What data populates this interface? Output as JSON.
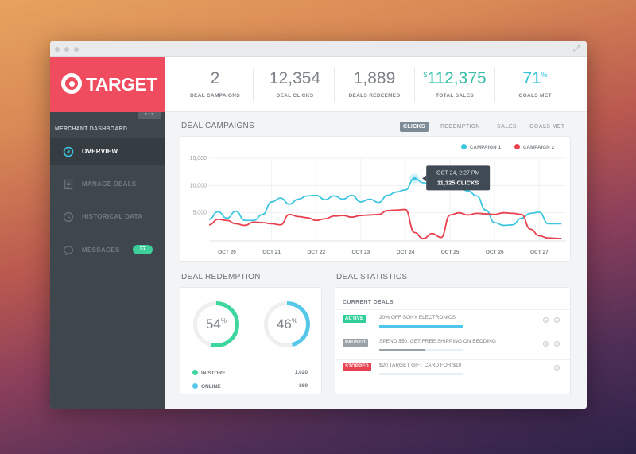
{
  "brand": {
    "name": "TARGET",
    "logo_icon": "target-bullseye-icon",
    "color": "#ef4d5f"
  },
  "sidebar": {
    "heading": "MERCHANT DASHBOARD",
    "more_icon": "more-dots-icon",
    "more_label": "•••",
    "items": [
      {
        "label": "OVERVIEW",
        "icon": "overview-icon",
        "active": true
      },
      {
        "label": "MANAGE DEALS",
        "icon": "document-icon",
        "active": false
      },
      {
        "label": "HISTORICAL DATA",
        "icon": "clock-icon",
        "active": false
      },
      {
        "label": "MESSAGES",
        "icon": "chat-bubble-icon",
        "active": false,
        "badge": "37"
      }
    ]
  },
  "stats": [
    {
      "value": "2",
      "label": "DEAL CAMPAIGNS"
    },
    {
      "value": "12,354",
      "label": "DEAL CLICKS"
    },
    {
      "value": "1,889",
      "label": "DEALS REDEEMED"
    },
    {
      "prefix": "$",
      "value": "112,375",
      "label": "TOTAL SALES"
    },
    {
      "value": "71",
      "suffix": "%",
      "label": "GOALS MET"
    }
  ],
  "campaigns": {
    "title": "DEAL CAMPAIGNS",
    "tabs": [
      "CLICKS",
      "REDEMPTION",
      "SALES",
      "GOALS MET"
    ],
    "active_tab": "CLICKS",
    "tooltip": {
      "date": "OCT 24, 2:27 PM",
      "value": "11,325 CLICKS"
    }
  },
  "chart_data": {
    "type": "line",
    "title": "",
    "xlabel": "",
    "ylabel": "",
    "ylim": [
      0,
      15000
    ],
    "yticks": [
      "15,000",
      "10,000",
      "5,000"
    ],
    "ytick_values": [
      15000,
      10000,
      5000
    ],
    "x_ticks": [
      "OCT 20",
      "OCT 21",
      "OCT 22",
      "OCT 23",
      "OCT 24",
      "OCT 25",
      "OCT 26",
      "OCT 27"
    ],
    "x": [
      19.6,
      19.8,
      20.0,
      20.2,
      20.4,
      20.6,
      20.8,
      21.0,
      21.2,
      21.4,
      21.6,
      21.8,
      22.0,
      22.2,
      22.4,
      22.6,
      22.8,
      23.0,
      23.2,
      23.4,
      23.6,
      23.8,
      24.0,
      24.2,
      24.4,
      24.6,
      24.8,
      25.0,
      25.2,
      25.4,
      25.6,
      25.8,
      26.0,
      26.2,
      26.4,
      26.6,
      26.8,
      27.0,
      27.2,
      27.5
    ],
    "series": [
      {
        "name": "CAMPAIGN 1",
        "color": "#3ec6e0",
        "values": [
          3800,
          5200,
          4000,
          5300,
          3600,
          3600,
          4700,
          7000,
          7700,
          6600,
          7500,
          8100,
          8200,
          7400,
          8100,
          7500,
          8200,
          7000,
          7500,
          6900,
          8200,
          8800,
          9200,
          11300,
          10500,
          9800,
          9400,
          9500,
          9600,
          9000,
          8100,
          5500,
          3200,
          2700,
          2800,
          4000,
          4900,
          5100,
          3000,
          3000
        ]
      },
      {
        "name": "CAMPAIGN 2",
        "color": "#e8414f",
        "values": [
          2800,
          3800,
          3600,
          3000,
          2700,
          3300,
          3200,
          3000,
          2800,
          4700,
          4300,
          4100,
          3600,
          3900,
          4400,
          4500,
          4200,
          4500,
          4600,
          4700,
          5400,
          5500,
          5600,
          1400,
          300,
          1200,
          500,
          4600,
          5000,
          4600,
          4900,
          4800,
          4700,
          5000,
          4900,
          4700,
          2000,
          800,
          400,
          300
        ]
      }
    ]
  },
  "redemption": {
    "title": "DEAL REDEMPTION",
    "donuts": [
      {
        "value": "54",
        "suffix": "%",
        "percent": 54,
        "color": "#3dd79d"
      },
      {
        "value": "46",
        "suffix": "%",
        "percent": 46,
        "color": "#55c8ea"
      }
    ],
    "legend": [
      {
        "label": "IN STORE",
        "value": "1,020",
        "color": "#3dd79d"
      },
      {
        "label": "ONLINE",
        "value": "869",
        "color": "#55c8ea"
      }
    ]
  },
  "statistics": {
    "title": "DEAL STATISTICS",
    "subtitle": "CURRENT DEALS",
    "deals": [
      {
        "status": "ACTIVE",
        "status_color": "#2fcf95",
        "text": "20% OFF SONY ELECTRONICS",
        "progress": 1.0,
        "bar_color": "#4fc6ea"
      },
      {
        "status": "PAUSED",
        "status_color": "#9aa2a9",
        "text": "SPEND $50, GET FREE SHIPPING ON BEDDING",
        "progress": 0.55,
        "bar_color": "#9aa2a9"
      },
      {
        "status": "STOPPED",
        "status_color": "#e8414f",
        "text": "$20 TARGET GIFT CARD FOR $10",
        "progress": 0.0,
        "bar_color": "#e6eff6"
      }
    ]
  }
}
